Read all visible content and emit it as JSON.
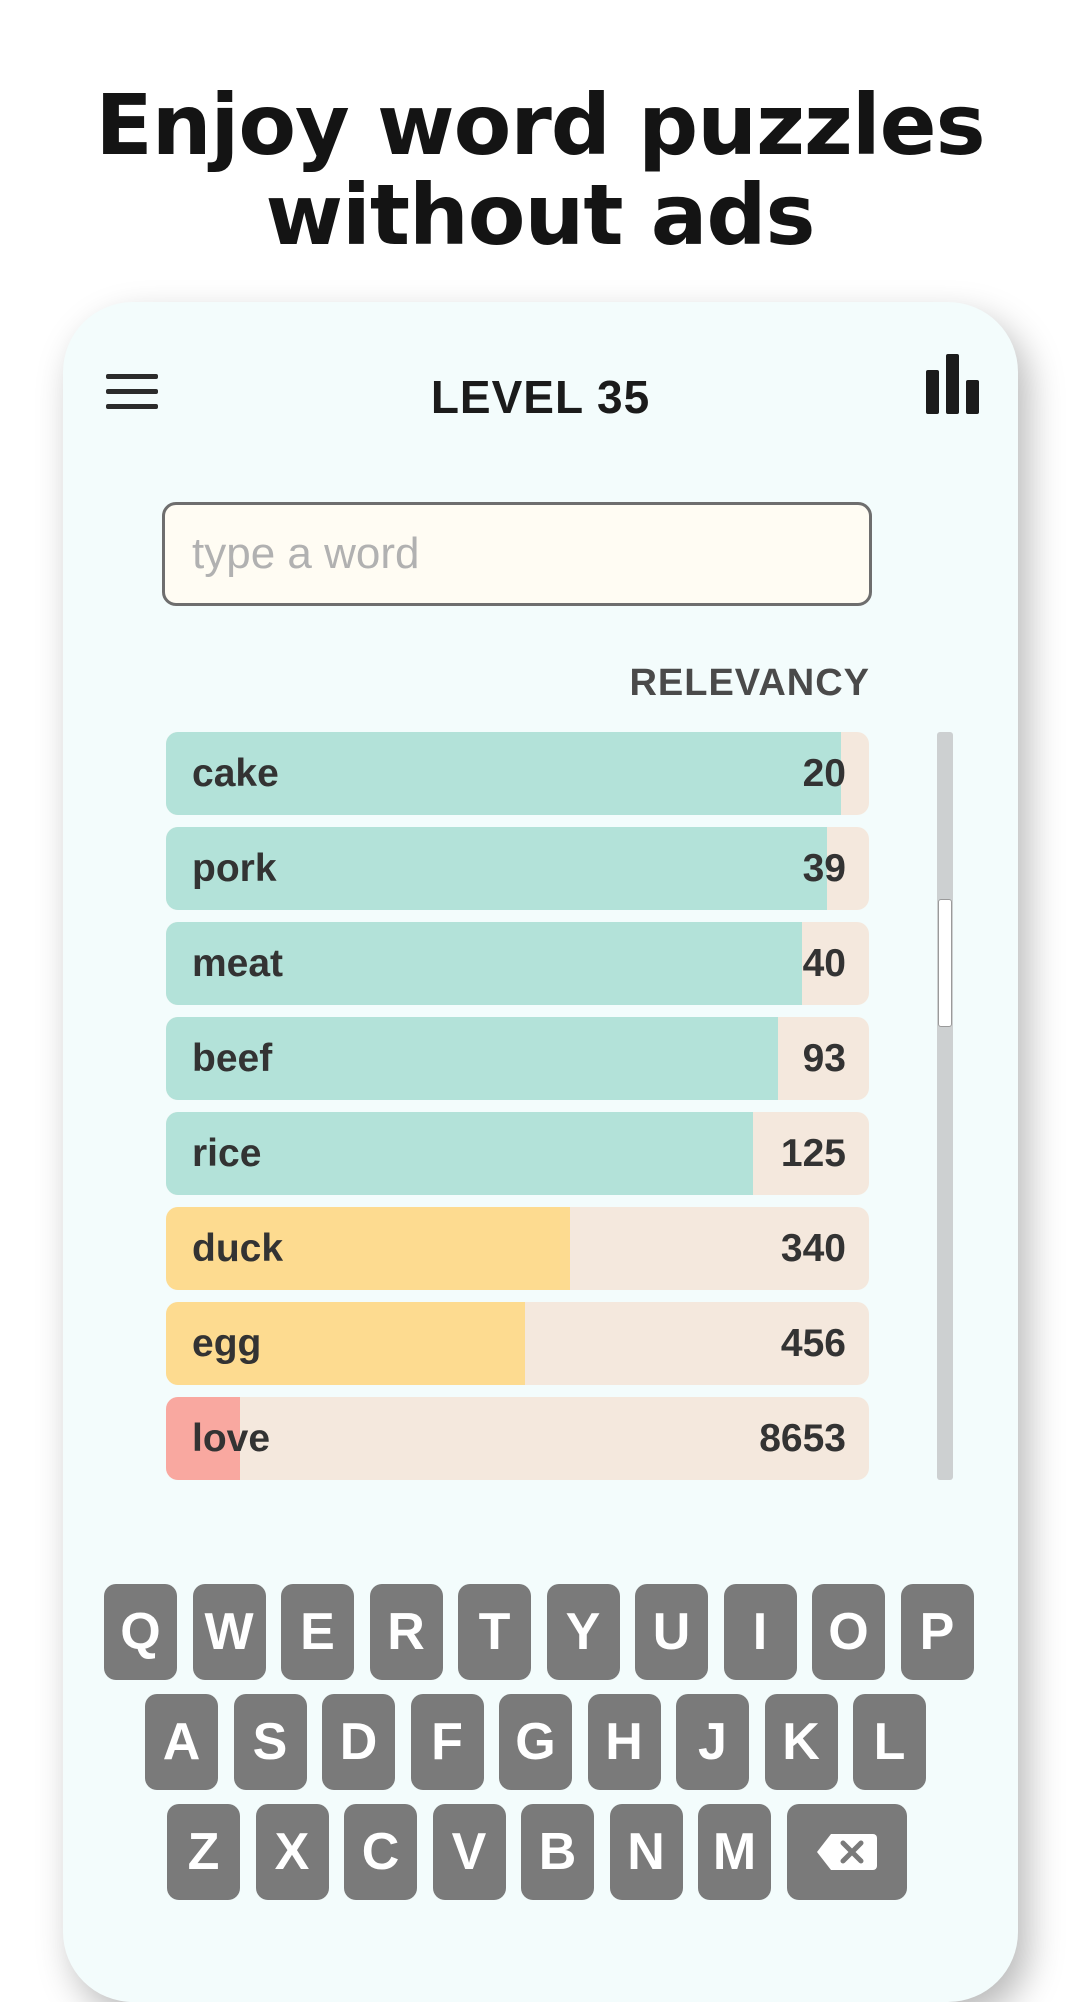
{
  "headline": {
    "line1": "Enjoy word puzzles",
    "line2": "without ads"
  },
  "header": {
    "title": "LEVEL 35",
    "menu_icon": "hamburger-icon",
    "stats_icon": "bar-chart-icon"
  },
  "search": {
    "placeholder": "type a word",
    "value": ""
  },
  "list": {
    "label": "RELEVANCY",
    "items": [
      {
        "word": "cake",
        "score": "20",
        "fill": 0.96,
        "color": "#b3e2d9"
      },
      {
        "word": "pork",
        "score": "39",
        "fill": 0.94,
        "color": "#b3e2d9"
      },
      {
        "word": "meat",
        "score": "40",
        "fill": 0.905,
        "color": "#b3e2d9"
      },
      {
        "word": "beef",
        "score": "93",
        "fill": 0.87,
        "color": "#b3e2d9"
      },
      {
        "word": "rice",
        "score": "125",
        "fill": 0.835,
        "color": "#b3e2d9"
      },
      {
        "word": "duck",
        "score": "340",
        "fill": 0.575,
        "color": "#fddb90"
      },
      {
        "word": "egg",
        "score": "456",
        "fill": 0.51,
        "color": "#fddb90"
      },
      {
        "word": "love",
        "score": "8653",
        "fill": 0.105,
        "color": "#f9a8a0"
      }
    ],
    "scroll_position": 0.27
  },
  "keyboard": {
    "row1": [
      "Q",
      "W",
      "E",
      "R",
      "T",
      "Y",
      "U",
      "I",
      "O",
      "P"
    ],
    "row2": [
      "A",
      "S",
      "D",
      "F",
      "G",
      "H",
      "J",
      "K",
      "L"
    ],
    "row3": [
      "Z",
      "X",
      "C",
      "V",
      "B",
      "N",
      "M"
    ],
    "backspace_icon": "backspace-icon"
  }
}
